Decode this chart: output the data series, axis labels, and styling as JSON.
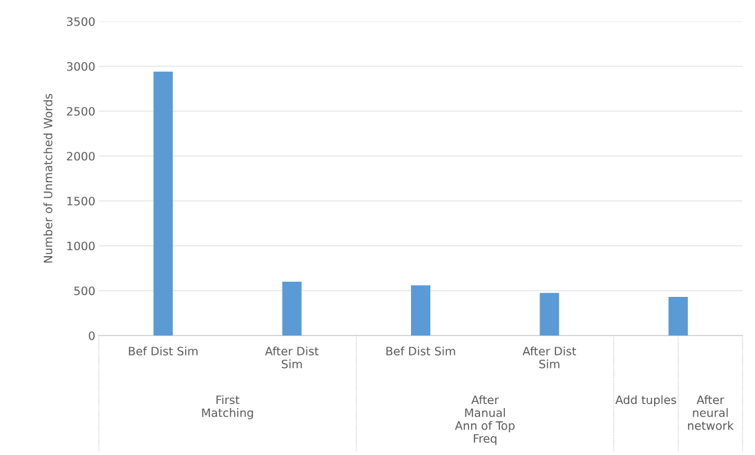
{
  "chart_data": {
    "type": "bar",
    "ylabel": "Number of Unmatched Words",
    "categories": [
      "Bef Dist Sim",
      "After Dist Sim",
      "Bef Dist Sim",
      "After Dist Sim",
      null
    ],
    "values": [
      2940,
      600,
      560,
      475,
      430
    ],
    "color": "#5b9bd5",
    "ylim": [
      0,
      3500
    ],
    "yticks": [
      0,
      500,
      1000,
      1500,
      2000,
      2500,
      3000,
      3500
    ],
    "grid": "y",
    "annotations": [
      "First Matching",
      "After Manual Ann of Top Freq",
      "Add tuples",
      "After neural network"
    ]
  }
}
